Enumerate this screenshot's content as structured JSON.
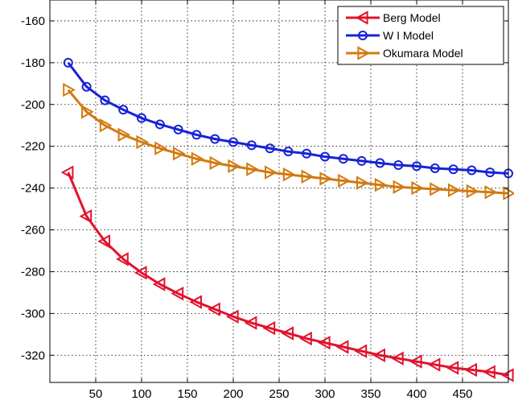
{
  "chart_data": {
    "type": "line",
    "title": "",
    "xlabel": "",
    "ylabel": "",
    "xlim": [
      0,
      500
    ],
    "ylim": [
      -333,
      -150
    ],
    "xticks": [
      50,
      100,
      150,
      200,
      250,
      300,
      350,
      400,
      450
    ],
    "yticks": [
      -320,
      -300,
      -280,
      -260,
      -240,
      -220,
      -200,
      -180,
      -160
    ],
    "grid": true,
    "legend_position": "top-right",
    "x": [
      20,
      40,
      60,
      80,
      100,
      120,
      140,
      160,
      180,
      200,
      220,
      240,
      260,
      280,
      300,
      320,
      340,
      360,
      380,
      400,
      420,
      440,
      460,
      480,
      500
    ],
    "series": [
      {
        "name": "Berg Model",
        "color": "#e3112c",
        "marker": "triangle-left",
        "values": [
          -232.5,
          -253.5,
          -265.5,
          -274,
          -280.5,
          -286,
          -290.5,
          -294.5,
          -298,
          -301.5,
          -304.5,
          -307,
          -309.5,
          -312,
          -314,
          -316,
          -318,
          -320,
          -321.5,
          -323,
          -324.5,
          -326,
          -327,
          -328,
          -329.5
        ]
      },
      {
        "name": "W I Model",
        "color": "#1722d6",
        "marker": "circle",
        "values": [
          -180,
          -191.5,
          -198,
          -202.5,
          -206.5,
          -209.5,
          -212,
          -214.5,
          -216.5,
          -218,
          -219.5,
          -221,
          -222.5,
          -223.5,
          -225,
          -226,
          -227,
          -228,
          -229,
          -229.5,
          -230.5,
          -231,
          -231.5,
          -232.5,
          -233
        ]
      },
      {
        "name": "Okumara Model",
        "color": "#d3790f",
        "marker": "triangle-right",
        "values": [
          -193,
          -203.5,
          -210,
          -214.5,
          -218,
          -221,
          -223.5,
          -226,
          -228,
          -229.5,
          -231,
          -232.5,
          -233.5,
          -234.5,
          -235.5,
          -236.5,
          -237.5,
          -238.5,
          -239.5,
          -240,
          -240.5,
          -241,
          -241.5,
          -242,
          -242.5
        ]
      }
    ]
  }
}
